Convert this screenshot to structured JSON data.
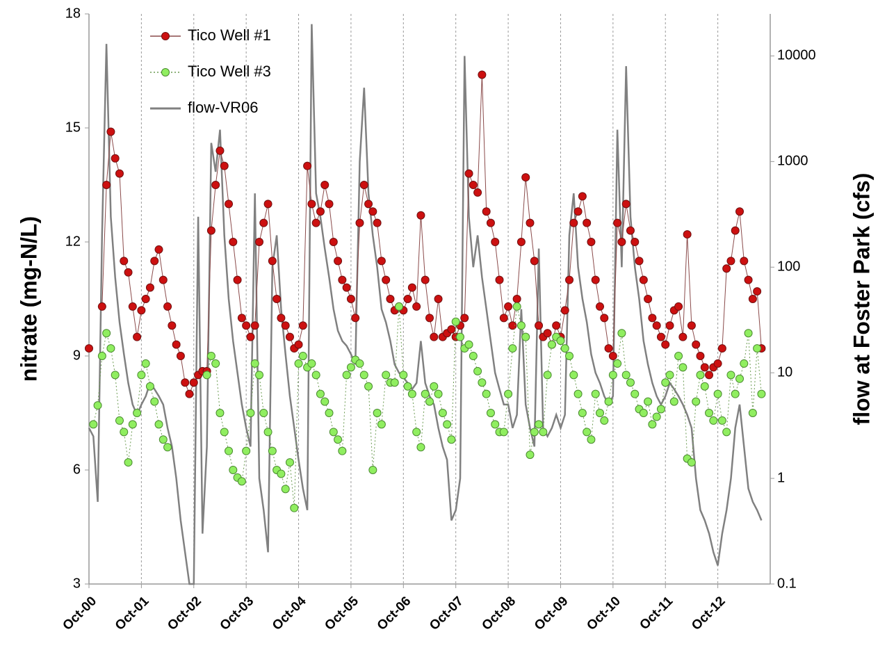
{
  "chart_data": {
    "type": "line",
    "ylabel": "nitrate (mg-N/L)",
    "y2label": "flow at Foster Park (cfs)",
    "x": [
      "2000-10",
      "2000-11",
      "2000-12",
      "2001-01",
      "2001-02",
      "2001-03",
      "2001-04",
      "2001-05",
      "2001-06",
      "2001-07",
      "2001-08",
      "2001-09",
      "2001-10",
      "2001-11",
      "2001-12",
      "2002-01",
      "2002-02",
      "2002-03",
      "2002-04",
      "2002-05",
      "2002-06",
      "2002-07",
      "2002-08",
      "2002-09",
      "2002-10",
      "2002-11",
      "2002-12",
      "2003-01",
      "2003-02",
      "2003-03",
      "2003-04",
      "2003-05",
      "2003-06",
      "2003-07",
      "2003-08",
      "2003-09",
      "2003-10",
      "2003-11",
      "2003-12",
      "2004-01",
      "2004-02",
      "2004-03",
      "2004-04",
      "2004-05",
      "2004-06",
      "2004-07",
      "2004-08",
      "2004-09",
      "2004-10",
      "2004-11",
      "2004-12",
      "2005-01",
      "2005-02",
      "2005-03",
      "2005-04",
      "2005-05",
      "2005-06",
      "2005-07",
      "2005-08",
      "2005-09",
      "2005-10",
      "2005-11",
      "2005-12",
      "2006-01",
      "2006-02",
      "2006-03",
      "2006-04",
      "2006-05",
      "2006-06",
      "2006-07",
      "2006-08",
      "2006-09",
      "2006-10",
      "2006-11",
      "2006-12",
      "2007-01",
      "2007-02",
      "2007-03",
      "2007-04",
      "2007-05",
      "2007-06",
      "2007-07",
      "2007-08",
      "2007-09",
      "2007-10",
      "2007-11",
      "2007-12",
      "2008-01",
      "2008-02",
      "2008-03",
      "2008-04",
      "2008-05",
      "2008-06",
      "2008-07",
      "2008-08",
      "2008-09",
      "2008-10",
      "2008-11",
      "2008-12",
      "2009-01",
      "2009-02",
      "2009-03",
      "2009-04",
      "2009-05",
      "2009-06",
      "2009-07",
      "2009-08",
      "2009-09",
      "2009-10",
      "2009-11",
      "2009-12",
      "2010-01",
      "2010-02",
      "2010-03",
      "2010-04",
      "2010-05",
      "2010-06",
      "2010-07",
      "2010-08",
      "2010-09",
      "2010-10",
      "2010-11",
      "2010-12",
      "2011-01",
      "2011-02",
      "2011-03",
      "2011-04",
      "2011-05",
      "2011-06",
      "2011-07",
      "2011-08",
      "2011-09",
      "2011-10",
      "2011-11",
      "2011-12",
      "2012-01",
      "2012-02",
      "2012-03",
      "2012-04",
      "2012-05",
      "2012-06",
      "2012-07",
      "2012-08",
      "2012-09",
      "2012-10",
      "2012-11",
      "2012-12",
      "2013-01",
      "2013-02",
      "2013-03",
      "2013-04",
      "2013-05",
      "2013-06",
      "2013-07",
      "2013-08"
    ],
    "series": [
      {
        "name": "Tico Well #1",
        "color": "#cc1010",
        "line_style": "solid",
        "marker": true,
        "values": [
          9.2,
          null,
          null,
          10.3,
          13.5,
          14.9,
          14.2,
          13.8,
          11.5,
          11.2,
          10.3,
          9.5,
          10.2,
          10.5,
          10.8,
          11.5,
          11.8,
          11.0,
          10.3,
          9.8,
          9.3,
          9.0,
          8.3,
          8.0,
          8.3,
          8.5,
          8.6,
          8.6,
          12.3,
          13.5,
          14.4,
          14.0,
          13.0,
          12.0,
          11.0,
          10.0,
          9.8,
          9.5,
          9.8,
          12.0,
          12.5,
          13.0,
          11.5,
          10.5,
          10.0,
          9.8,
          9.5,
          9.2,
          9.3,
          9.8,
          14.0,
          13.0,
          12.5,
          12.8,
          13.5,
          13.0,
          12.0,
          11.5,
          11.0,
          10.8,
          10.5,
          10.0,
          12.5,
          13.5,
          13.0,
          12.8,
          12.5,
          11.5,
          11.0,
          10.5,
          10.2,
          10.3,
          10.2,
          10.5,
          10.8,
          10.3,
          12.7,
          11.0,
          10.0,
          9.5,
          10.5,
          9.5,
          9.6,
          9.7,
          9.5,
          9.8,
          10.0,
          13.8,
          13.5,
          13.3,
          16.4,
          12.8,
          12.5,
          12.0,
          11.0,
          10.0,
          10.3,
          9.8,
          10.5,
          12.0,
          13.7,
          12.5,
          11.5,
          9.8,
          9.5,
          9.6,
          9.3,
          9.8,
          9.5,
          10.2,
          11.0,
          12.5,
          12.8,
          13.2,
          12.5,
          12.0,
          11.0,
          10.3,
          10.0,
          9.2,
          9.0,
          12.5,
          12.0,
          13.0,
          12.3,
          12.0,
          11.5,
          11.0,
          10.5,
          10.0,
          9.8,
          9.5,
          9.3,
          9.8,
          10.2,
          10.3,
          9.5,
          12.2,
          9.8,
          9.3,
          9.0,
          8.7,
          8.5,
          8.7,
          8.8,
          9.2,
          11.3,
          11.5,
          12.3,
          12.8,
          11.5,
          11.0,
          10.5,
          10.7,
          9.2
        ]
      },
      {
        "name": "Tico Well #3",
        "color": "#90ee60",
        "line_style": "dotted",
        "marker": true,
        "values": [
          null,
          7.2,
          7.7,
          9.0,
          9.6,
          9.2,
          8.5,
          7.3,
          7.0,
          6.2,
          7.2,
          7.5,
          8.5,
          8.8,
          8.2,
          7.8,
          7.2,
          6.8,
          6.6,
          null,
          null,
          null,
          null,
          null,
          null,
          null,
          null,
          8.5,
          9.0,
          8.8,
          7.5,
          7.0,
          6.5,
          6.0,
          5.8,
          5.7,
          6.5,
          7.5,
          8.8,
          8.5,
          7.5,
          7.0,
          6.5,
          6.0,
          5.9,
          5.5,
          6.2,
          5.0,
          8.8,
          9.0,
          8.7,
          8.8,
          8.5,
          8.0,
          7.8,
          7.5,
          7.0,
          6.8,
          6.5,
          8.5,
          8.7,
          8.9,
          8.8,
          8.5,
          8.2,
          6.0,
          7.5,
          7.2,
          8.5,
          8.3,
          8.3,
          10.3,
          8.5,
          8.2,
          8.0,
          7.0,
          6.6,
          8.0,
          7.8,
          8.2,
          8.0,
          7.5,
          7.2,
          6.8,
          9.9,
          9.5,
          9.2,
          9.3,
          9.0,
          8.6,
          8.3,
          8.0,
          7.5,
          7.2,
          7.0,
          7.0,
          8.0,
          9.2,
          10.3,
          9.8,
          9.5,
          6.4,
          7.0,
          7.2,
          7.0,
          8.5,
          9.3,
          9.5,
          9.4,
          9.2,
          9.0,
          8.5,
          8.0,
          7.5,
          7.0,
          6.8,
          8.0,
          7.5,
          7.3,
          7.8,
          8.5,
          8.8,
          9.6,
          8.5,
          8.3,
          8.0,
          7.6,
          7.5,
          7.8,
          7.2,
          7.4,
          7.6,
          8.3,
          8.5,
          7.8,
          9.0,
          8.7,
          6.3,
          6.2,
          7.8,
          8.5,
          8.2,
          7.5,
          7.3,
          8.0,
          7.3,
          7.0,
          8.5,
          8.0,
          8.4,
          8.8,
          9.6,
          7.5,
          9.2,
          8.0
        ]
      },
      {
        "name": "flow-VR06",
        "color": "#808080",
        "line_style": "solid",
        "marker": false,
        "axis": "y2",
        "values": [
          3,
          2.5,
          0.6,
          200,
          13000,
          300,
          80,
          30,
          15,
          8,
          5,
          4,
          5,
          6,
          8,
          7,
          6,
          5,
          3,
          2,
          1,
          0.4,
          0.2,
          0.1,
          0.1,
          300,
          0.3,
          2,
          1500,
          800,
          2000,
          200,
          50,
          20,
          10,
          5,
          3,
          2,
          500,
          1,
          0.5,
          0.2,
          100,
          200,
          40,
          15,
          6,
          3,
          1.5,
          0.8,
          0.5,
          20000,
          500,
          300,
          150,
          80,
          40,
          25,
          20,
          18,
          15,
          12,
          1000,
          5000,
          500,
          200,
          100,
          40,
          30,
          20,
          12,
          10,
          9,
          8,
          7,
          8,
          20,
          8,
          6,
          5,
          3,
          2,
          1.5,
          0.4,
          0.5,
          1,
          10000,
          300,
          100,
          200,
          80,
          40,
          20,
          10,
          7,
          5,
          5,
          3,
          4,
          40,
          5,
          3,
          2,
          150,
          3,
          2.5,
          3,
          4,
          3,
          4,
          200,
          500,
          100,
          50,
          30,
          15,
          10,
          8,
          6,
          5,
          6,
          2000,
          100,
          8000,
          300,
          100,
          50,
          20,
          12,
          8,
          6,
          5,
          6,
          8,
          7,
          6,
          5,
          4,
          3,
          1,
          0.5,
          0.4,
          0.3,
          0.2,
          0.15,
          0.3,
          0.5,
          1,
          3,
          5,
          2,
          0.8,
          0.6,
          0.5,
          0.4
        ]
      }
    ],
    "xlim": [
      "2000-10",
      "2013-10"
    ],
    "xticks": [
      {
        "value": "2000-10",
        "label": "Oct-00"
      },
      {
        "value": "2001-10",
        "label": "Oct-01"
      },
      {
        "value": "2002-10",
        "label": "Oct-02"
      },
      {
        "value": "2003-10",
        "label": "Oct-03"
      },
      {
        "value": "2004-10",
        "label": "Oct-04"
      },
      {
        "value": "2005-10",
        "label": "Oct-05"
      },
      {
        "value": "2006-10",
        "label": "Oct-06"
      },
      {
        "value": "2007-10",
        "label": "Oct-07"
      },
      {
        "value": "2008-10",
        "label": "Oct-08"
      },
      {
        "value": "2009-10",
        "label": "Oct-09"
      },
      {
        "value": "2010-10",
        "label": "Oct-10"
      },
      {
        "value": "2011-10",
        "label": "Oct-11"
      },
      {
        "value": "2012-10",
        "label": "Oct-12"
      }
    ],
    "ylim": [
      3,
      18
    ],
    "yticks": [
      3,
      6,
      9,
      12,
      15,
      18
    ],
    "y2lim": [
      0.1,
      25000
    ],
    "y2ticks": [
      0.1,
      1,
      10,
      100,
      1000,
      10000
    ],
    "y2scale": "log",
    "grid": "x",
    "legend": "upper left"
  }
}
